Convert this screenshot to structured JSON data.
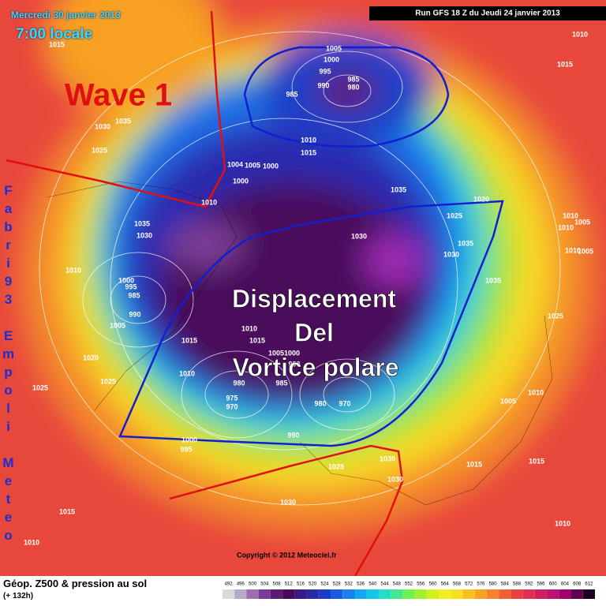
{
  "header": {
    "date": "Mercredi 30 janvier 2013",
    "time": "7:00 locale",
    "run": "Run GFS 18 Z du Jeudi 24 janvier 2013"
  },
  "annotations": {
    "wave": "Wave 1",
    "displacement": [
      "Displacement",
      "Del",
      "Vortice polare"
    ],
    "author": "Fabri93 Empoli Meteo"
  },
  "copyright": "Copyright © 2012 Meteociel.fr",
  "footer": {
    "title": "Géop. Z500 & pression au sol",
    "lead": "(+ 132h)"
  },
  "scale": {
    "values": [
      492,
      496,
      500,
      504,
      508,
      512,
      516,
      520,
      524,
      528,
      532,
      536,
      540,
      544,
      548,
      552,
      556,
      560,
      564,
      568,
      572,
      576,
      580,
      584,
      588,
      592,
      596,
      600,
      604,
      608,
      612
    ],
    "colors": [
      "#d9d9d9",
      "#b9a9c9",
      "#9a6fb0",
      "#7a3c96",
      "#5e1a74",
      "#4a0a5c",
      "#3a1a8a",
      "#2a2aa8",
      "#1a3cc8",
      "#1a5ae0",
      "#1a80f0",
      "#10a8f0",
      "#10c8e8",
      "#20e0c8",
      "#40e890",
      "#70f050",
      "#a0f030",
      "#d0f020",
      "#f0f020",
      "#f8e020",
      "#f8c020",
      "#f8a020",
      "#f88030",
      "#f06030",
      "#e84040",
      "#e03050",
      "#d02060",
      "#c01070",
      "#a00070",
      "#600050",
      "#200020"
    ]
  },
  "pressure_labels": [
    "1015",
    "1010",
    "1015",
    "1005",
    "1000",
    "995",
    "990",
    "985",
    "980",
    "985",
    "1030",
    "1035",
    "1025",
    "1010",
    "1015",
    "1000",
    "1005",
    "1004",
    "1000",
    "1010",
    "1035",
    "1020",
    "1025",
    "1035",
    "1030",
    "1030",
    "1030",
    "1035",
    "1010",
    "1010",
    "1005",
    "1010",
    "1005",
    "1010",
    "1000",
    "995",
    "985",
    "990",
    "1035",
    "1005",
    "1010",
    "1015",
    "1015",
    "1005",
    "1000",
    "990",
    "1020",
    "1010",
    "1025",
    "1025",
    "985",
    "980",
    "975",
    "970",
    "980",
    "970",
    "1025",
    "1010",
    "1005",
    "990",
    "1000",
    "995",
    "1030",
    "1025",
    "1015",
    "1015",
    "1030",
    "1030",
    "1015",
    "1010",
    "1010"
  ]
}
